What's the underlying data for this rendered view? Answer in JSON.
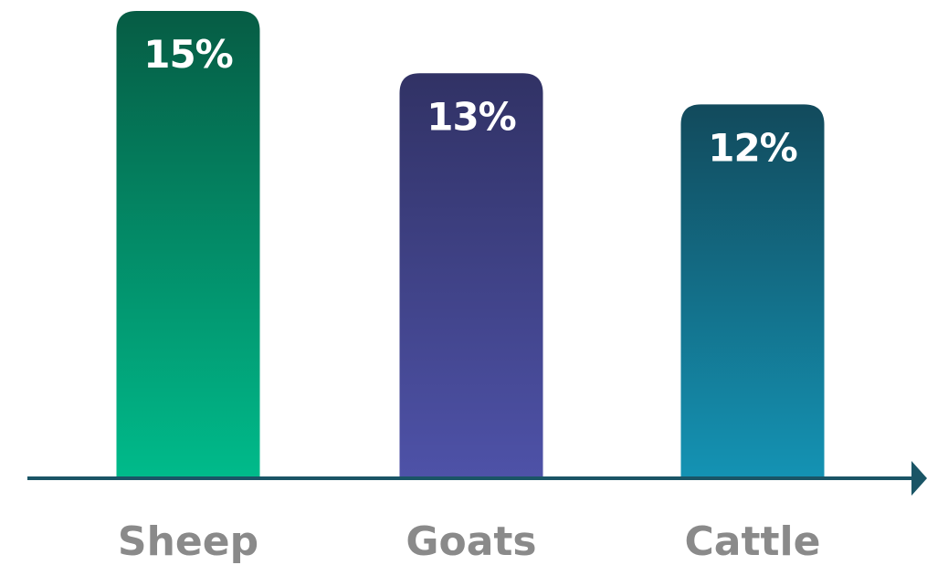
{
  "chart_data": {
    "type": "bar",
    "categories": [
      "Sheep",
      "Goats",
      "Cattle"
    ],
    "values": [
      15,
      13,
      12
    ],
    "value_labels": [
      "15%",
      "13%",
      "12%"
    ],
    "title": "",
    "xlabel": "",
    "ylabel": "",
    "ylim": [
      0,
      15
    ],
    "grid": false,
    "legend": "none",
    "colors": [
      {
        "top": "#065c44",
        "bottom": "#00bb8b"
      },
      {
        "top": "#313265",
        "bottom": "#4e52a8"
      },
      {
        "top": "#124a5c",
        "bottom": "#1493b4"
      }
    ],
    "axis_color": "#1a5566",
    "label_color": "#8a8a8a"
  }
}
